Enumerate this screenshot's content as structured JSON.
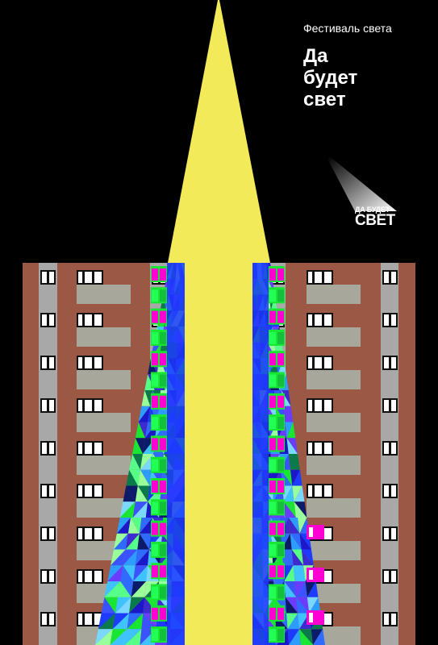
{
  "poster": {
    "festival_label": "Фестиваль света",
    "headline": [
      "Да",
      "будет",
      "свет"
    ],
    "logo": {
      "line1": "ДА БУДЕТ",
      "line2": "СВЕТ"
    }
  },
  "colors": {
    "background": "#000000",
    "beam": "#f3ea5a",
    "building": "#9b5844",
    "column": "#a8a8a8",
    "balcony": "#a8a79c",
    "window": "#ffffff",
    "text": "#ffffff",
    "mosaic_magenta": "#ff00d2",
    "mosaic_green": "#19e633",
    "mosaic_blue": "#1d3bff"
  },
  "building": {
    "floors": 9
  }
}
